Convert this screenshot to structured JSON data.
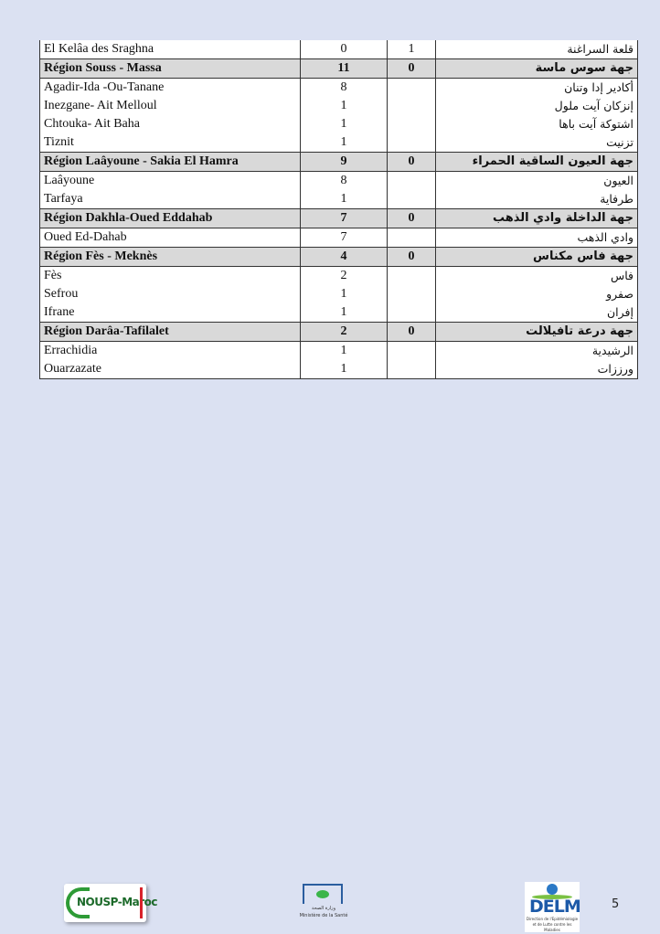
{
  "table": {
    "rows": [
      {
        "type": "district",
        "fr": "El Kelâa des  Sraghna",
        "a": "0",
        "b": "1",
        "ar": "قلعة السراغنة"
      },
      {
        "type": "region",
        "fr": "Région Souss - Massa",
        "a": "11",
        "b": "0",
        "ar": "جهة سوس ماسة"
      },
      {
        "type": "district",
        "fr": "Agadir-Ida -Ou-Tanane",
        "a": "8",
        "b": "",
        "ar": "أكادير إدا وتنان"
      },
      {
        "type": "district",
        "fr": "Inezgane- Ait Melloul",
        "a": "1",
        "b": "",
        "ar": "إنزكان آيت ملول"
      },
      {
        "type": "district",
        "fr": "Chtouka- Ait Baha",
        "a": "1",
        "b": "",
        "ar": "اشتوكة آيت باها"
      },
      {
        "type": "district",
        "fr": "Tiznit",
        "a": "1",
        "b": "",
        "ar": "تزنيت"
      },
      {
        "type": "region",
        "fr": "Région Laâyoune - Sakia El Hamra",
        "a": "9",
        "b": "0",
        "ar": "جهة العيون الساقية الحمراء"
      },
      {
        "type": "district",
        "fr": "Laâyoune",
        "a": "8",
        "b": "",
        "ar": "العيون"
      },
      {
        "type": "district",
        "fr": "Tarfaya",
        "a": "1",
        "b": "",
        "ar": "طرفاية"
      },
      {
        "type": "region",
        "fr": "Région Dakhla-Oued Eddahab",
        "a": "7",
        "b": "0",
        "ar": "جهة الداخلة وادي الذهب"
      },
      {
        "type": "district",
        "fr": "Oued Ed-Dahab",
        "a": "7",
        "b": "",
        "ar": "وادي الذهب"
      },
      {
        "type": "region",
        "fr": "Région Fès - Meknès",
        "a": "4",
        "b": "0",
        "ar": "جهة فاس مكناس"
      },
      {
        "type": "district",
        "fr": "Fès",
        "a": "2",
        "b": "",
        "ar": "فاس"
      },
      {
        "type": "district",
        "fr": "Sefrou",
        "a": "1",
        "b": "",
        "ar": "صفرو"
      },
      {
        "type": "district",
        "fr": "Ifrane",
        "a": "1",
        "b": "",
        "ar": "إفران"
      },
      {
        "type": "region",
        "fr": "Région Darâa-Tafilalet",
        "a": "2",
        "b": "0",
        "ar": "جهة درعة تافيلالت"
      },
      {
        "type": "district",
        "fr": "Errachidia",
        "a": "1",
        "b": "",
        "ar": "الرشيدية"
      },
      {
        "type": "district",
        "fr": "Ouarzazate",
        "a": "1",
        "b": "",
        "ar": "ورززات"
      }
    ]
  },
  "footer": {
    "logos": {
      "nousp": "NOUSP-Maroc",
      "ministry_ar": "وزارة الصحة",
      "ministry_fr": "Ministère de la Santé",
      "delm": "DELM",
      "delm_sub": "Direction de l'Epidémiologie et de Lutte contre les Maladies"
    },
    "page_number": "5"
  },
  "colors": {
    "page_bg": "#dbe1f2",
    "region_row_bg": "#d9d9d9"
  }
}
